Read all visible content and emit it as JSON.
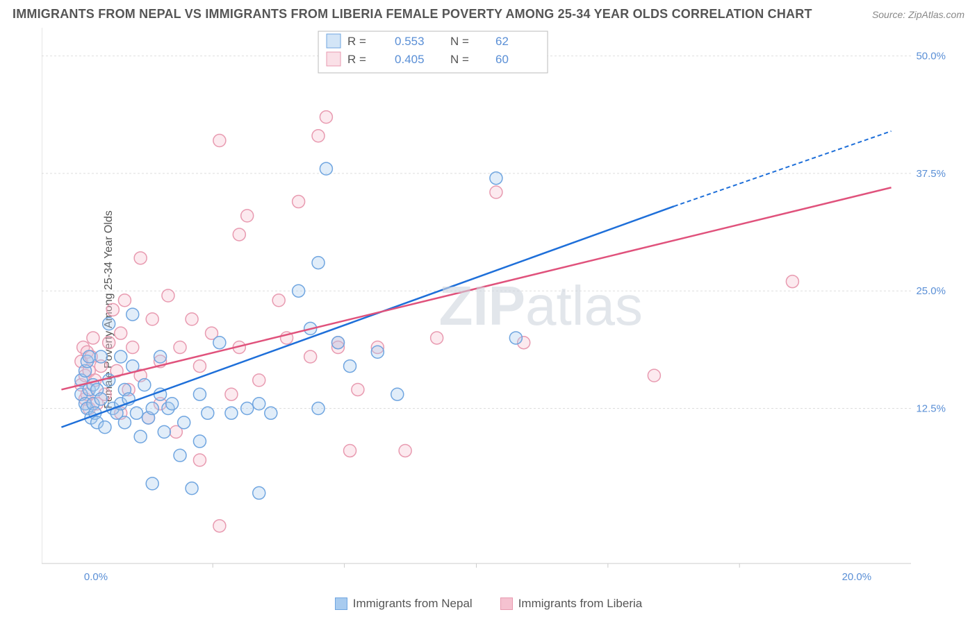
{
  "title": "IMMIGRANTS FROM NEPAL VS IMMIGRANTS FROM LIBERIA FEMALE POVERTY AMONG 25-34 YEAR OLDS CORRELATION CHART",
  "source": "Source: ZipAtlas.com",
  "watermark_a": "ZIP",
  "watermark_b": "atlas",
  "y_axis_label": "Female Poverty Among 25-34 Year Olds",
  "chart": {
    "type": "scatter",
    "background_color": "#ffffff",
    "grid_color": "#dddddd",
    "axis_color": "#cccccc",
    "tick_label_color": "#5a8fd6",
    "x_domain_min": -1.0,
    "x_domain_max": 21.0,
    "y_domain_min": -4.0,
    "y_domain_max": 53.0,
    "x_ticks": [
      {
        "v": 0.0,
        "l": "0.0%"
      },
      {
        "v": 20.0,
        "l": "20.0%"
      }
    ],
    "y_ticks": [
      {
        "v": 12.5,
        "l": "12.5%"
      },
      {
        "v": 25.0,
        "l": "25.0%"
      },
      {
        "v": 37.5,
        "l": "37.5%"
      },
      {
        "v": 50.0,
        "l": "50.0%"
      }
    ],
    "marker_radius": 9,
    "marker_fill_opacity": 0.35,
    "series": [
      {
        "name": "Immigrants from Nepal",
        "stroke": "#6fa5e0",
        "fill": "#a8cbef",
        "trend_color": "#1e6fd9",
        "R": "0.553",
        "N": "62",
        "trend_x0": -0.5,
        "trend_y0": 10.5,
        "trend_x1": 15.0,
        "trend_y1": 34.0,
        "trend_dash_x1": 20.5,
        "trend_dash_y1": 42.0,
        "points": [
          [
            0.0,
            14.0
          ],
          [
            0.0,
            15.5
          ],
          [
            0.1,
            13.0
          ],
          [
            0.1,
            16.5
          ],
          [
            0.15,
            12.5
          ],
          [
            0.15,
            17.5
          ],
          [
            0.2,
            14.5
          ],
          [
            0.2,
            18.0
          ],
          [
            0.25,
            11.5
          ],
          [
            0.3,
            15.0
          ],
          [
            0.3,
            13.0
          ],
          [
            0.35,
            12.0
          ],
          [
            0.4,
            11.0
          ],
          [
            0.4,
            14.5
          ],
          [
            0.5,
            18.0
          ],
          [
            0.5,
            13.5
          ],
          [
            0.6,
            10.5
          ],
          [
            0.7,
            21.5
          ],
          [
            0.7,
            15.5
          ],
          [
            0.8,
            12.5
          ],
          [
            0.9,
            12.0
          ],
          [
            1.0,
            18.0
          ],
          [
            1.0,
            13.0
          ],
          [
            1.1,
            11.0
          ],
          [
            1.1,
            14.5
          ],
          [
            1.2,
            13.5
          ],
          [
            1.3,
            17.0
          ],
          [
            1.3,
            22.5
          ],
          [
            1.4,
            12.0
          ],
          [
            1.5,
            9.5
          ],
          [
            1.6,
            15.0
          ],
          [
            1.7,
            11.5
          ],
          [
            1.8,
            12.5
          ],
          [
            1.8,
            4.5
          ],
          [
            2.0,
            18.0
          ],
          [
            2.0,
            14.0
          ],
          [
            2.1,
            10.0
          ],
          [
            2.2,
            12.5
          ],
          [
            2.3,
            13.0
          ],
          [
            2.5,
            7.5
          ],
          [
            2.6,
            11.0
          ],
          [
            2.8,
            4.0
          ],
          [
            3.0,
            9.0
          ],
          [
            3.0,
            14.0
          ],
          [
            3.2,
            12.0
          ],
          [
            3.5,
            19.5
          ],
          [
            3.8,
            12.0
          ],
          [
            4.2,
            12.5
          ],
          [
            4.5,
            13.0
          ],
          [
            4.5,
            3.5
          ],
          [
            4.8,
            12.0
          ],
          [
            5.5,
            25.0
          ],
          [
            5.8,
            21.0
          ],
          [
            6.0,
            12.5
          ],
          [
            6.0,
            28.0
          ],
          [
            6.2,
            38.0
          ],
          [
            6.5,
            19.5
          ],
          [
            6.8,
            17.0
          ],
          [
            7.5,
            18.5
          ],
          [
            8.0,
            14.0
          ],
          [
            10.5,
            37.0
          ],
          [
            11.0,
            20.0
          ]
        ]
      },
      {
        "name": "Immigrants from Liberia",
        "stroke": "#e89ab0",
        "fill": "#f5c2d0",
        "trend_color": "#e0527c",
        "R": "0.405",
        "N": "60",
        "trend_x0": -0.5,
        "trend_y0": 14.5,
        "trend_x1": 20.5,
        "trend_y1": 36.0,
        "trend_dash_x1": 20.5,
        "trend_dash_y1": 36.0,
        "points": [
          [
            0.0,
            17.5
          ],
          [
            0.0,
            15.0
          ],
          [
            0.05,
            19.0
          ],
          [
            0.1,
            16.0
          ],
          [
            0.1,
            13.5
          ],
          [
            0.15,
            18.5
          ],
          [
            0.15,
            14.0
          ],
          [
            0.2,
            16.5
          ],
          [
            0.2,
            12.5
          ],
          [
            0.25,
            18.0
          ],
          [
            0.3,
            20.0
          ],
          [
            0.35,
            15.5
          ],
          [
            0.4,
            13.0
          ],
          [
            0.5,
            17.0
          ],
          [
            0.6,
            14.0
          ],
          [
            0.7,
            19.5
          ],
          [
            0.8,
            23.0
          ],
          [
            0.9,
            16.5
          ],
          [
            1.0,
            12.0
          ],
          [
            1.0,
            20.5
          ],
          [
            1.1,
            24.0
          ],
          [
            1.2,
            14.5
          ],
          [
            1.3,
            19.0
          ],
          [
            1.5,
            28.5
          ],
          [
            1.5,
            16.0
          ],
          [
            1.7,
            11.5
          ],
          [
            1.8,
            22.0
          ],
          [
            2.0,
            17.5
          ],
          [
            2.0,
            13.0
          ],
          [
            2.2,
            24.5
          ],
          [
            2.4,
            10.0
          ],
          [
            2.5,
            19.0
          ],
          [
            2.8,
            22.0
          ],
          [
            3.0,
            17.0
          ],
          [
            3.0,
            7.0
          ],
          [
            3.3,
            20.5
          ],
          [
            3.5,
            41.0
          ],
          [
            3.5,
            0.0
          ],
          [
            3.8,
            14.0
          ],
          [
            4.0,
            19.0
          ],
          [
            4.2,
            33.0
          ],
          [
            4.5,
            15.5
          ],
          [
            5.0,
            24.0
          ],
          [
            5.2,
            20.0
          ],
          [
            5.5,
            34.5
          ],
          [
            5.8,
            18.0
          ],
          [
            6.0,
            41.5
          ],
          [
            6.2,
            43.5
          ],
          [
            6.5,
            19.5
          ],
          [
            6.8,
            8.0
          ],
          [
            7.0,
            14.5
          ],
          [
            7.5,
            19.0
          ],
          [
            8.2,
            8.0
          ],
          [
            9.0,
            20.0
          ],
          [
            10.5,
            35.5
          ],
          [
            11.2,
            19.5
          ],
          [
            14.5,
            16.0
          ],
          [
            18.0,
            26.0
          ],
          [
            6.5,
            19.0
          ],
          [
            4.0,
            31.0
          ]
        ]
      }
    ]
  },
  "legend_top": {
    "r_label": "R  =",
    "n_label": "N  ="
  },
  "bottom_legend": {
    "a_label": "Immigrants from Nepal",
    "b_label": "Immigrants from Liberia"
  }
}
